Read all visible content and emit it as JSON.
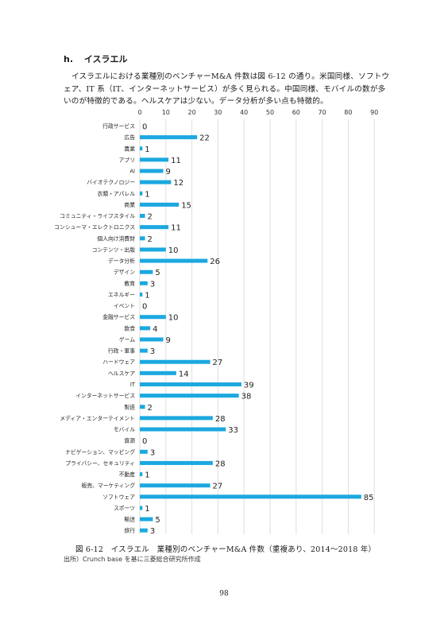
{
  "section": {
    "number": "h.",
    "title": "イスラエル"
  },
  "paragraph": "イスラエルにおける業種別のベンチャーM&A 件数は図 6-12 の通り。米国同様、ソフトウェア、IT 系（IT、インターネットサービス）が多く見られる。中国同様、モバイルの数が多いのが特徴的である。ヘルスケアは少ない。データ分析が多い点も特徴的。",
  "caption": "図 6-12　イスラエル　業種別のベンチャーM&A 件数（重複あり、2014〜2018 年）",
  "source": "出所）Crunch base を基に三菱総合研究所作成",
  "page_number": "98",
  "chart_data": {
    "type": "bar",
    "orientation": "horizontal",
    "xlim": [
      0,
      90
    ],
    "xticks": [
      0,
      10,
      20,
      30,
      40,
      50,
      60,
      70,
      80,
      90
    ],
    "grid": true,
    "bar_color": "#1ca8e0",
    "grid_color": "#dedede",
    "categories": [
      "行政サービス",
      "広告",
      "農業",
      "アプリ",
      "AI",
      "バイオテクノロジー",
      "衣類・アパレル",
      "商業",
      "コミュニティ・ライフスタイル",
      "コンシューマ・エレクトロニクス",
      "個人向け消費財",
      "コンテンツ・出版",
      "データ分析",
      "デザイン",
      "教育",
      "エネルギー",
      "イベント",
      "金融サービス",
      "飲食",
      "ゲーム",
      "行政・軍事",
      "ハードウェア",
      "ヘルスケア",
      "IT",
      "インターネットサービス",
      "製造",
      "メディア・エンターテイメント",
      "モバイル",
      "資源",
      "ナビゲーション、マッピング",
      "プライバシー、セキュリティ",
      "不動産",
      "販売、マーケティング",
      "ソフトウェア",
      "スポーツ",
      "輸送",
      "旅行"
    ],
    "values": [
      0,
      22,
      1,
      11,
      9,
      12,
      1,
      15,
      2,
      11,
      2,
      10,
      26,
      5,
      3,
      1,
      0,
      10,
      4,
      9,
      3,
      27,
      14,
      39,
      38,
      2,
      28,
      33,
      0,
      3,
      28,
      1,
      27,
      85,
      1,
      5,
      3
    ]
  }
}
